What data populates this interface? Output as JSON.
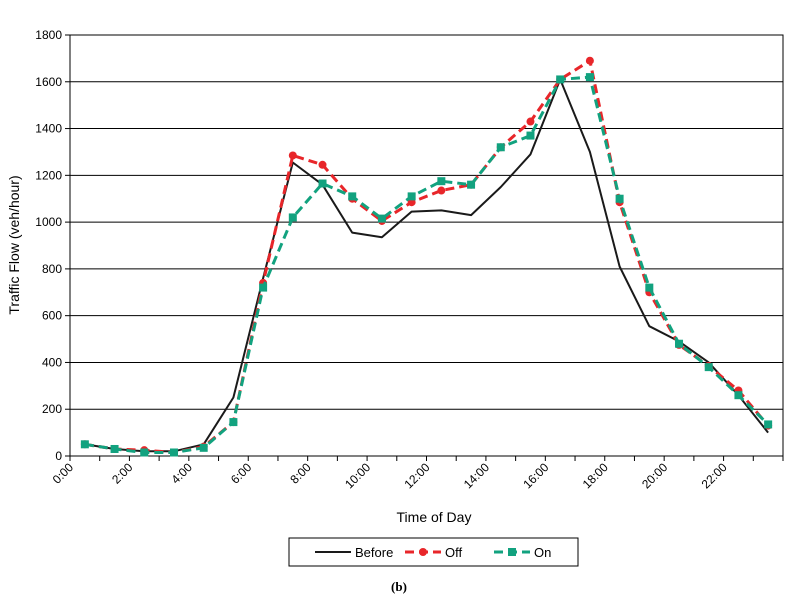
{
  "chart_data": {
    "type": "line",
    "xlabel": "Time of Day",
    "ylabel": "Traffic Flow (veh/hour)",
    "caption": "(b)",
    "ylim": [
      0,
      1800
    ],
    "yticks": [
      0,
      200,
      400,
      600,
      800,
      1000,
      1200,
      1400,
      1600,
      1800
    ],
    "xtick_labels": [
      "0:00",
      "2:00",
      "4:00",
      "6:00",
      "8:00",
      "10:00",
      "12:00",
      "14:00",
      "16:00",
      "18:00",
      "20:00",
      "22:00"
    ],
    "x": [
      "0:30",
      "1:30",
      "2:30",
      "3:30",
      "4:30",
      "5:30",
      "6:30",
      "7:30",
      "8:30",
      "9:30",
      "10:30",
      "11:30",
      "12:30",
      "13:30",
      "14:30",
      "15:30",
      "16:30",
      "17:30",
      "18:30",
      "19:30",
      "20:30",
      "21:30",
      "22:30",
      "23:30"
    ],
    "grid": true,
    "legend_position": "bottom",
    "series": [
      {
        "name": "Before",
        "color": "#1a1a1a",
        "marker": "none",
        "line": "solid",
        "values": [
          50,
          30,
          20,
          20,
          50,
          250,
          760,
          1255,
          1160,
          955,
          935,
          1045,
          1050,
          1030,
          1150,
          1290,
          1610,
          1300,
          810,
          555,
          490,
          400,
          260,
          100
        ]
      },
      {
        "name": "Off",
        "color": "#e8262a",
        "marker": "circle",
        "line": "dashed",
        "values": [
          50,
          30,
          25,
          15,
          40,
          145,
          740,
          1285,
          1245,
          1100,
          1005,
          1085,
          1135,
          1160,
          1320,
          1430,
          1610,
          1690,
          1085,
          700,
          475,
          385,
          280,
          130
        ]
      },
      {
        "name": "On",
        "color": "#12a27f",
        "marker": "square",
        "line": "dashed",
        "values": [
          50,
          30,
          15,
          15,
          35,
          145,
          720,
          1020,
          1165,
          1110,
          1015,
          1110,
          1175,
          1160,
          1320,
          1370,
          1610,
          1620,
          1100,
          720,
          480,
          380,
          260,
          135
        ]
      }
    ]
  }
}
